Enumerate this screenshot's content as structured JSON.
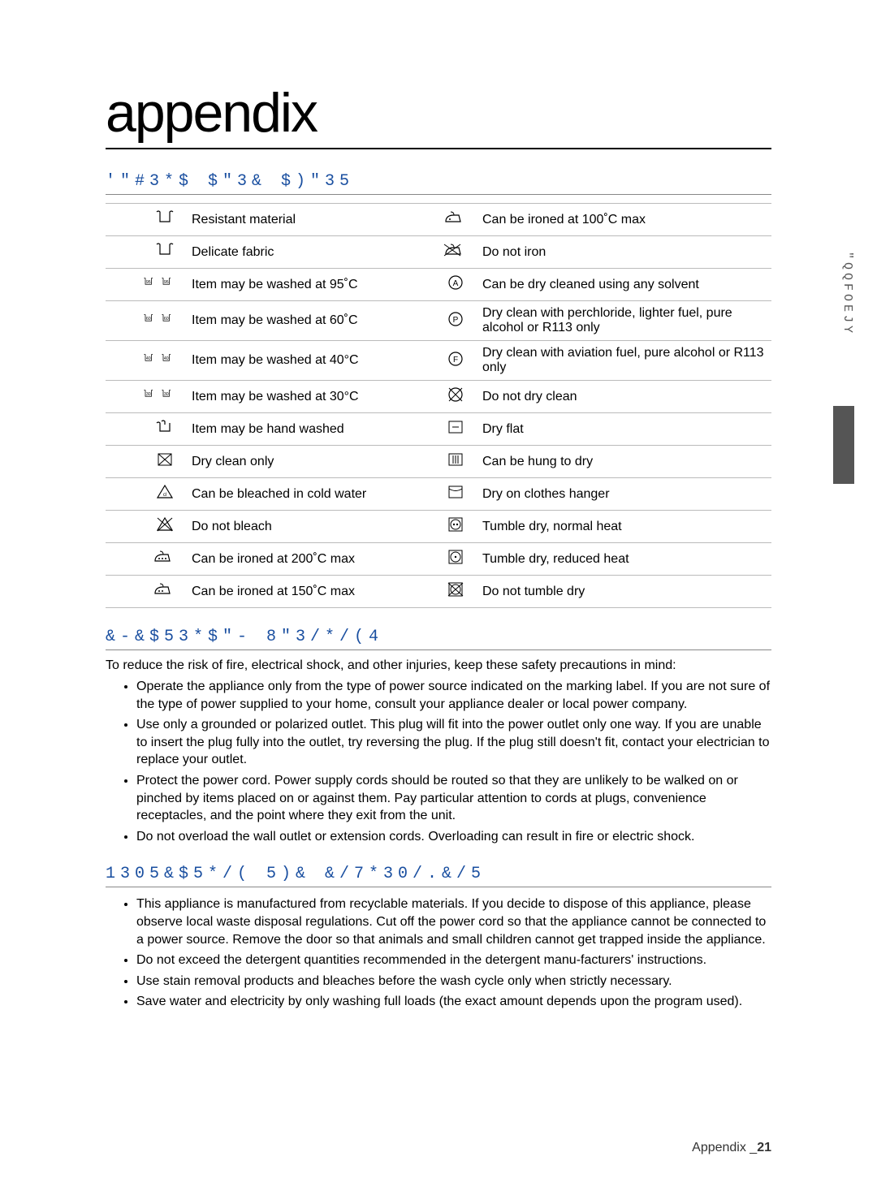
{
  "page_title": "appendix",
  "side_tab": "\"QQFOEJY",
  "headings": {
    "fabric": "'\"#3*$  $\"3&  $)\"35",
    "electrical": "&-&$53*$\"-  8\"3/*/(4",
    "environment": "1305&$5*/(  5)&  &/7*30/.&/5"
  },
  "footer": {
    "label": "Appendix _",
    "page": "21"
  },
  "care_rows": [
    {
      "left": "Resistant material",
      "right": "Can be ironed at 100˚C max",
      "li": "tub",
      "ri": "iron1"
    },
    {
      "left": "Delicate fabric",
      "right": "Do not iron",
      "li": "tub",
      "ri": "noiron"
    },
    {
      "left": "Item may be washed at 95˚C",
      "right": "Can be dry cleaned using any solvent",
      "li": "tub95",
      "ri": "circleA"
    },
    {
      "left": "Item may be washed at 60˚C",
      "right": "Dry clean with perchloride, lighter fuel, pure alcohol or R113 only",
      "li": "tub60",
      "ri": "circleP"
    },
    {
      "left": "Item may be washed at 40°C",
      "right": "Dry clean with aviation fuel, pure alcohol or R113 only",
      "li": "tub40",
      "ri": "circleF"
    },
    {
      "left": "Item may be washed at 30°C",
      "right": "Do not dry clean",
      "li": "tub30",
      "ri": "nodry"
    },
    {
      "left": "Item may be hand washed",
      "right": "Dry flat",
      "li": "hand",
      "ri": "flat"
    },
    {
      "left": "Dry clean only",
      "right": "Can be hung to dry",
      "li": "dryonly",
      "ri": "hang"
    },
    {
      "left": "Can be bleached in cold water",
      "right": "Dry on clothes hanger",
      "li": "bleach",
      "ri": "hanger"
    },
    {
      "left": "Do not bleach",
      "right": "Tumble dry, normal heat",
      "li": "nobleach",
      "ri": "tumble2"
    },
    {
      "left": "Can be ironed at 200˚C max",
      "right": "Tumble dry, reduced heat",
      "li": "iron3",
      "ri": "tumble1"
    },
    {
      "left": "Can be ironed at 150˚C max",
      "right": "Do not tumble dry",
      "li": "iron2",
      "ri": "notumble"
    }
  ],
  "electrical_intro": "To reduce the risk of fire, electrical shock, and other injuries, keep these safety precautions in mind:",
  "electrical_bullets": [
    "Operate the appliance only from the type of power source indicated on the marking label. If you are not sure of the type of power supplied to your home, consult your appliance dealer or local power company.",
    "Use only a grounded or polarized outlet. This plug will fit into the power outlet only one way. If you are unable to insert the plug fully into the outlet, try reversing the plug. If the plug still doesn't fit, contact your electrician to replace your outlet.",
    "Protect the power cord. Power supply cords should be routed so that they are unlikely to be walked on or pinched by items placed on or against them. Pay particular attention to cords at plugs, convenience receptacles, and the point where they exit from the unit.",
    "Do not overload the wall outlet or extension cords. Overloading can result in fire or electric shock."
  ],
  "environment_bullets": [
    "This appliance is manufactured from recyclable materials. If you decide to dispose of this appliance, please observe local waste disposal regulations. Cut off the power cord so that the appliance cannot be connected to a power source. Remove the door so that animals and small children cannot get trapped inside the appliance.",
    "Do not exceed the detergent quantities recommended in the detergent manu-facturers' instructions.",
    "Use stain removal products and bleaches before the wash cycle only when strictly necessary.",
    "Save water and electricity by only washing full loads (the exact amount depends upon the program used)."
  ],
  "icons": {
    "tub": {
      "svg": "tub",
      "label": ""
    },
    "tub95": {
      "svg": "tub_pair",
      "label": "95"
    },
    "tub60": {
      "svg": "tub_pair",
      "label": "60"
    },
    "tub40": {
      "svg": "tub_pair",
      "label": "40"
    },
    "tub30": {
      "svg": "tub_pair",
      "label": "30"
    },
    "hand": {
      "svg": "hand"
    },
    "dryonly": {
      "svg": "dryonly"
    },
    "bleach": {
      "svg": "triangle"
    },
    "nobleach": {
      "svg": "triangle_x"
    },
    "iron3": {
      "svg": "iron",
      "dots": 3
    },
    "iron2": {
      "svg": "iron",
      "dots": 2
    },
    "iron1": {
      "svg": "iron",
      "dots": 1
    },
    "noiron": {
      "svg": "iron_x"
    },
    "circleA": {
      "svg": "circle_letter",
      "letter": "A"
    },
    "circleP": {
      "svg": "circle_letter",
      "letter": "P"
    },
    "circleF": {
      "svg": "circle_letter",
      "letter": "F"
    },
    "nodry": {
      "svg": "circle_x"
    },
    "flat": {
      "svg": "sq_dash"
    },
    "hang": {
      "svg": "sq_bars"
    },
    "hanger": {
      "svg": "sq_curve"
    },
    "tumble2": {
      "svg": "sq_circ",
      "dots": 2
    },
    "tumble1": {
      "svg": "sq_circ",
      "dots": 1
    },
    "notumble": {
      "svg": "sq_circ_x"
    }
  }
}
